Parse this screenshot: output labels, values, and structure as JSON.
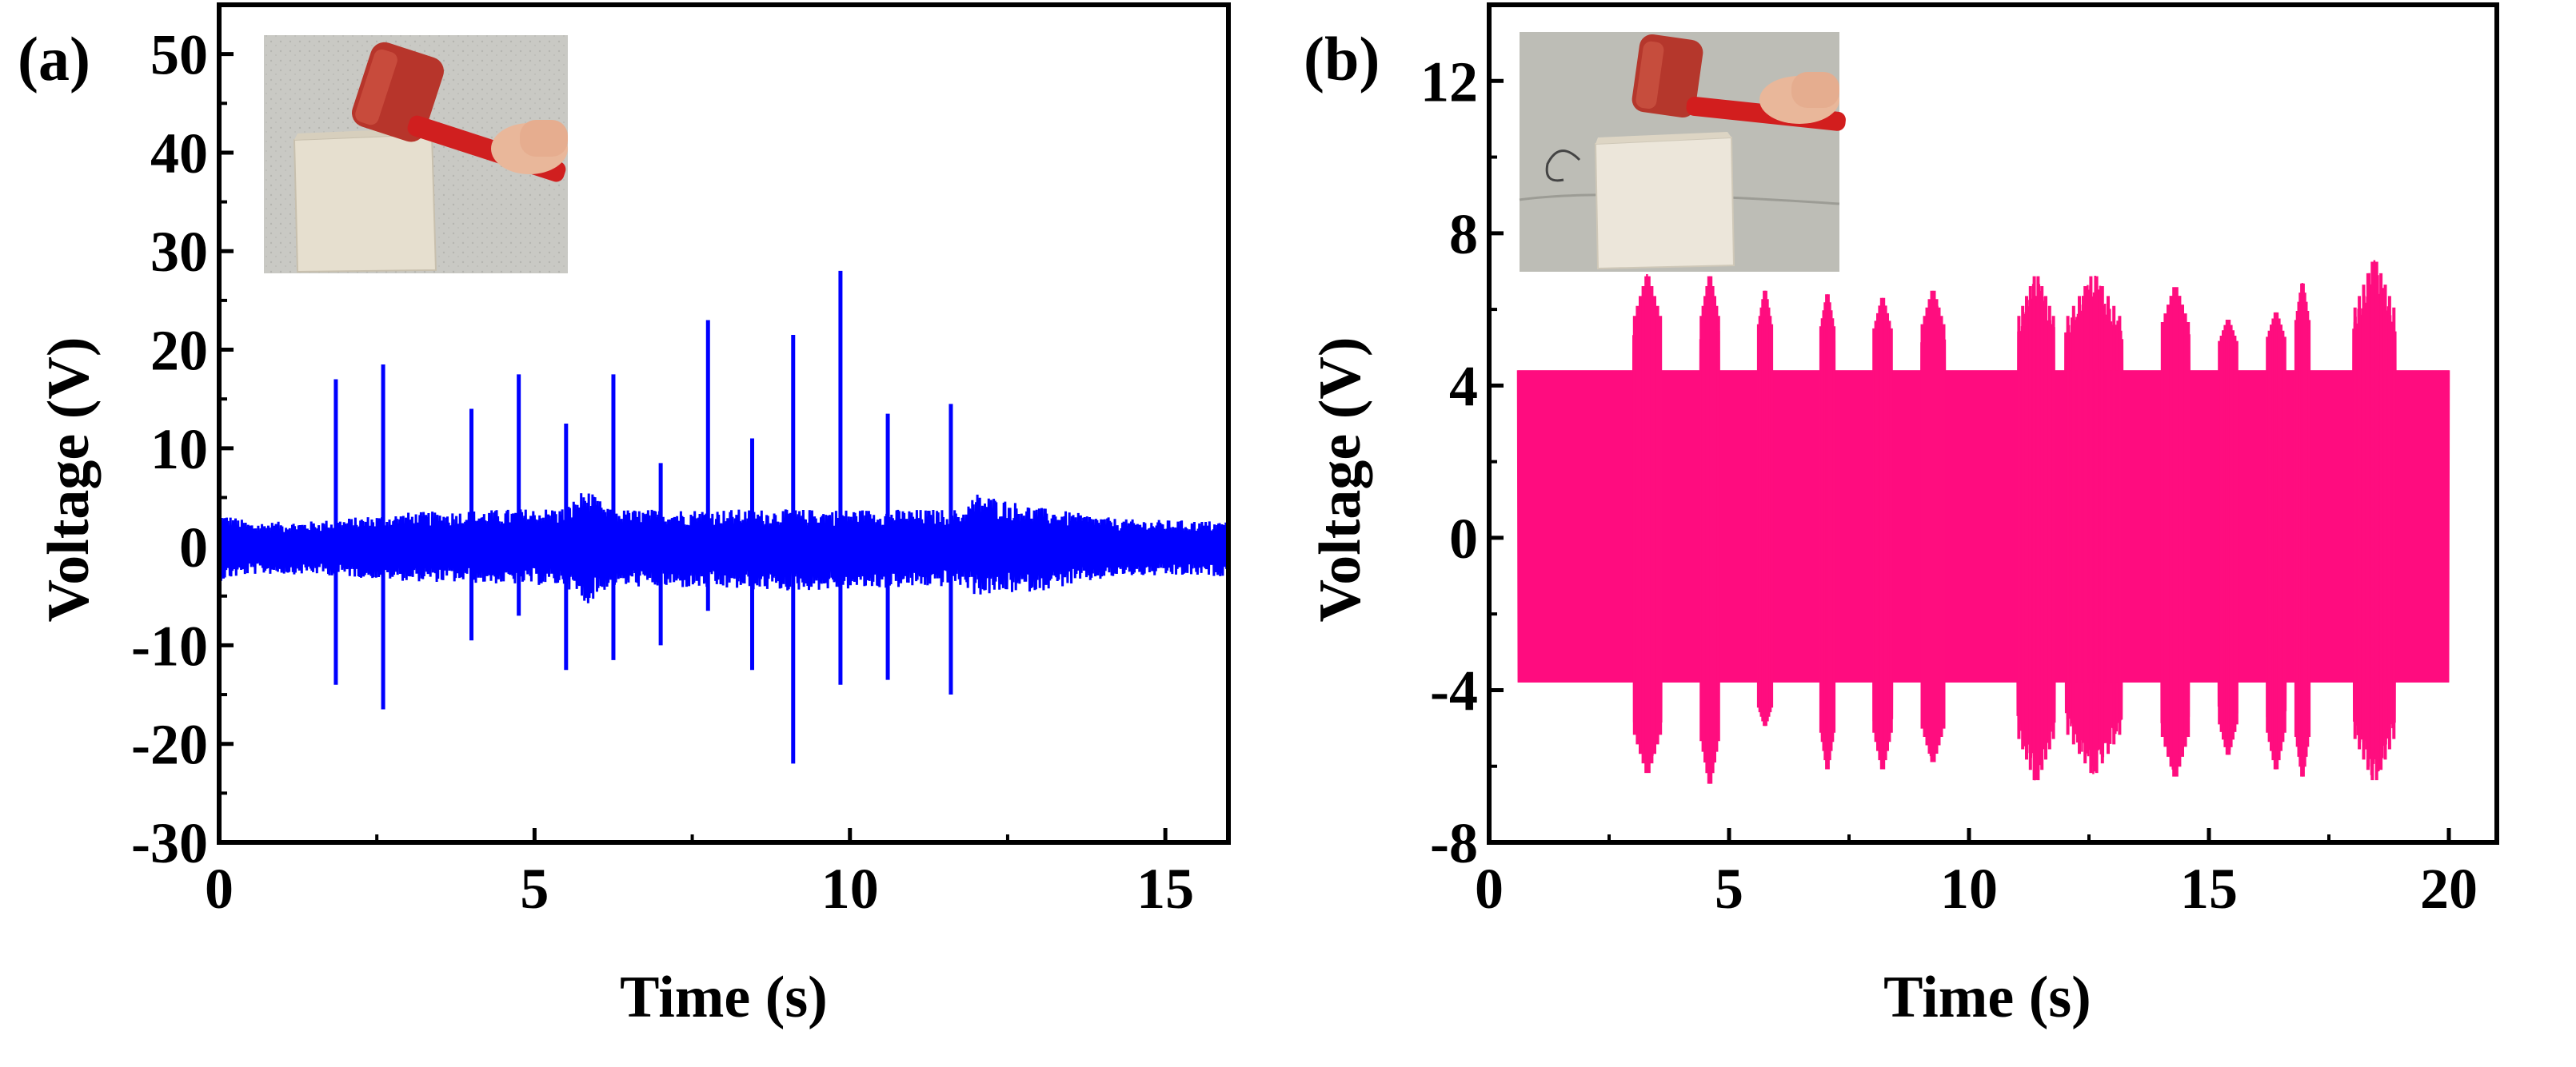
{
  "chart_data": [
    {
      "panel_label": "(a)",
      "type": "line",
      "xlabel": "Time (s)",
      "ylabel": "Voltage (V)",
      "xlim": [
        0,
        16
      ],
      "ylim": [
        -30,
        55
      ],
      "xticks": [
        0,
        5,
        10,
        15
      ],
      "yticks": [
        -30,
        -20,
        -10,
        0,
        10,
        20,
        30,
        40,
        50
      ],
      "line_color": "#0000ff",
      "baseline": [
        {
          "x": 0,
          "max": 3.5,
          "min": -3.5
        },
        {
          "x": 0.5,
          "max": 2.5,
          "min": -2.8
        },
        {
          "x": 1.5,
          "max": 2.6,
          "min": -2.8
        },
        {
          "x": 3,
          "max": 3.5,
          "min": -3.5
        },
        {
          "x": 5.5,
          "max": 4.0,
          "min": -4.0
        },
        {
          "x": 5.8,
          "max": 6.0,
          "min": -6.0
        },
        {
          "x": 6.2,
          "max": 3.8,
          "min": -4.0
        },
        {
          "x": 9,
          "max": 3.8,
          "min": -4.5
        },
        {
          "x": 11.8,
          "max": 3.8,
          "min": -4.0
        },
        {
          "x": 12.0,
          "max": 5.5,
          "min": -5.0
        },
        {
          "x": 13.0,
          "max": 4.0,
          "min": -4.5
        },
        {
          "x": 14.3,
          "max": 2.8,
          "min": -3.0
        },
        {
          "x": 16,
          "max": 2.6,
          "min": -3.0
        }
      ],
      "peaks": [
        {
          "x": 1.85,
          "max": 17,
          "min": -14
        },
        {
          "x": 2.6,
          "max": 18.5,
          "min": -16.5
        },
        {
          "x": 4.0,
          "max": 14,
          "min": -9.5
        },
        {
          "x": 4.75,
          "max": 17.5,
          "min": -7
        },
        {
          "x": 5.5,
          "max": 12.5,
          "min": -12.5
        },
        {
          "x": 6.25,
          "max": 17.5,
          "min": -11.5
        },
        {
          "x": 7.0,
          "max": 8.5,
          "min": -10
        },
        {
          "x": 7.75,
          "max": 23,
          "min": -6.5
        },
        {
          "x": 8.45,
          "max": 11,
          "min": -12.5
        },
        {
          "x": 9.1,
          "max": 21.5,
          "min": -22
        },
        {
          "x": 9.85,
          "max": 28,
          "min": -14
        },
        {
          "x": 10.6,
          "max": 13.5,
          "min": -13.5
        },
        {
          "x": 11.6,
          "max": 14.5,
          "min": -15
        }
      ],
      "inset_photo": "hammer-striking-block"
    },
    {
      "panel_label": "(b)",
      "type": "line",
      "xlabel": "Time (s)",
      "ylabel": "Voltage (V)",
      "xlim": [
        0,
        21
      ],
      "ylim": [
        -8,
        14
      ],
      "xticks": [
        0,
        5,
        10,
        15,
        20
      ],
      "yticks": [
        -8,
        -4,
        0,
        4,
        8,
        12
      ],
      "line_color": "#ff0d7f",
      "signal_start": 0.6,
      "signal_end": 20.0,
      "base_amplitude": {
        "max": 4.4,
        "min": -3.8
      },
      "bursts": [
        {
          "x0": 3.0,
          "x1": 3.6,
          "max": 7.0,
          "min": -6.3
        },
        {
          "x0": 4.4,
          "x1": 4.8,
          "max": 7.0,
          "min": -6.6
        },
        {
          "x0": 5.6,
          "x1": 5.9,
          "max": 6.6,
          "min": -5.0
        },
        {
          "x0": 6.9,
          "x1": 7.2,
          "max": 6.5,
          "min": -6.2
        },
        {
          "x0": 8.0,
          "x1": 8.4,
          "max": 6.4,
          "min": -6.2
        },
        {
          "x0": 9.0,
          "x1": 9.5,
          "max": 6.6,
          "min": -6.0
        },
        {
          "x0": 11.0,
          "x1": 11.8,
          "max": 7.0,
          "min": -6.5
        },
        {
          "x0": 12.0,
          "x1": 13.2,
          "max": 7.0,
          "min": -6.3
        },
        {
          "x0": 14.0,
          "x1": 14.6,
          "max": 6.7,
          "min": -6.4
        },
        {
          "x0": 15.2,
          "x1": 15.6,
          "max": 5.8,
          "min": -5.8
        },
        {
          "x0": 16.2,
          "x1": 16.6,
          "max": 6.0,
          "min": -6.2
        },
        {
          "x0": 16.8,
          "x1": 17.1,
          "max": 6.8,
          "min": -6.4
        },
        {
          "x0": 18.0,
          "x1": 18.9,
          "max": 7.4,
          "min": -6.5
        }
      ],
      "inset_photo": "hammer-striking-block"
    }
  ]
}
